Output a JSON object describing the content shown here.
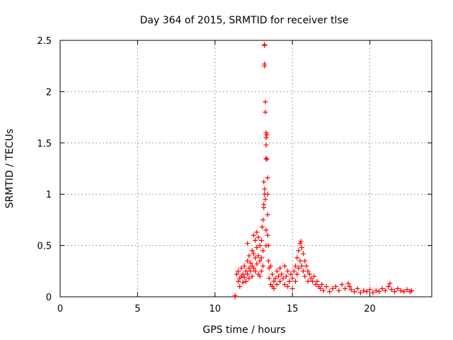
{
  "chart_data": {
    "type": "scatter",
    "title": "Day 364 of 2015, SRMTID for receiver tlse",
    "xlabel": "GPS time / hours",
    "ylabel": "SRMTID / TECUs",
    "xlim": [
      0,
      24
    ],
    "ylim": [
      0,
      2.5
    ],
    "xticks": [
      0,
      5,
      10,
      15,
      20
    ],
    "xtick_labels": [
      "0",
      "5",
      "10",
      "15",
      "20"
    ],
    "yticks": [
      0,
      0.5,
      1,
      1.5,
      2,
      2.5
    ],
    "ytick_labels": [
      "0",
      "0.5",
      "1",
      "1.5",
      "2",
      "2.5"
    ],
    "grid": true,
    "marker": "+",
    "series": [
      {
        "name": "SRMTID",
        "color": "#ff0000",
        "points": [
          [
            11.3,
            0.0
          ],
          [
            11.3,
            0.01
          ],
          [
            11.4,
            0.22
          ],
          [
            11.5,
            0.15
          ],
          [
            11.5,
            0.25
          ],
          [
            11.6,
            0.18
          ],
          [
            11.6,
            0.1
          ],
          [
            11.7,
            0.28
          ],
          [
            11.7,
            0.2
          ],
          [
            11.8,
            0.22
          ],
          [
            11.8,
            0.14
          ],
          [
            11.9,
            0.3
          ],
          [
            11.9,
            0.19
          ],
          [
            12.0,
            0.25
          ],
          [
            12.0,
            0.15
          ],
          [
            12.1,
            0.52
          ],
          [
            12.1,
            0.35
          ],
          [
            12.1,
            0.22
          ],
          [
            12.2,
            0.4
          ],
          [
            12.2,
            0.28
          ],
          [
            12.2,
            0.18
          ],
          [
            12.3,
            0.33
          ],
          [
            12.3,
            0.25
          ],
          [
            12.4,
            0.45
          ],
          [
            12.4,
            0.3
          ],
          [
            12.4,
            0.2
          ],
          [
            12.5,
            0.6
          ],
          [
            12.5,
            0.42
          ],
          [
            12.5,
            0.28
          ],
          [
            12.6,
            0.55
          ],
          [
            12.6,
            0.38
          ],
          [
            12.6,
            0.25
          ],
          [
            12.7,
            0.63
          ],
          [
            12.7,
            0.48
          ],
          [
            12.7,
            0.32
          ],
          [
            12.8,
            0.58
          ],
          [
            12.8,
            0.4
          ],
          [
            12.8,
            0.22
          ],
          [
            12.9,
            0.5
          ],
          [
            12.9,
            0.35
          ],
          [
            12.9,
            0.2
          ],
          [
            13.0,
            0.55
          ],
          [
            13.0,
            0.38
          ],
          [
            13.0,
            0.25
          ],
          [
            13.05,
            0.68
          ],
          [
            13.1,
            0.75
          ],
          [
            13.1,
            0.45
          ],
          [
            13.1,
            0.3
          ],
          [
            13.15,
            0.9
          ],
          [
            13.15,
            0.87
          ],
          [
            13.15,
            1.12
          ],
          [
            13.2,
            1.05
          ],
          [
            13.2,
            1.0
          ],
          [
            13.2,
            2.45
          ],
          [
            13.2,
            2.46
          ],
          [
            13.2,
            2.25
          ],
          [
            13.2,
            2.27
          ],
          [
            13.25,
            1.9
          ],
          [
            13.25,
            1.8
          ],
          [
            13.25,
            0.95
          ],
          [
            13.3,
            1.6
          ],
          [
            13.3,
            1.55
          ],
          [
            13.3,
            1.48
          ],
          [
            13.3,
            1.35
          ],
          [
            13.3,
            0.65
          ],
          [
            13.3,
            0.5
          ],
          [
            13.35,
            1.58
          ],
          [
            13.35,
            1.34
          ],
          [
            13.4,
            1.16
          ],
          [
            13.4,
            1.0
          ],
          [
            13.4,
            0.8
          ],
          [
            13.4,
            0.6
          ],
          [
            13.45,
            0.5
          ],
          [
            13.45,
            0.35
          ],
          [
            13.5,
            0.28
          ],
          [
            13.5,
            0.18
          ],
          [
            13.6,
            0.3
          ],
          [
            13.6,
            0.12
          ],
          [
            13.7,
            0.22
          ],
          [
            13.7,
            0.1
          ],
          [
            13.8,
            0.15
          ],
          [
            13.8,
            0.08
          ],
          [
            13.9,
            0.18
          ],
          [
            14.0,
            0.25
          ],
          [
            14.0,
            0.12
          ],
          [
            14.1,
            0.2
          ],
          [
            14.2,
            0.28
          ],
          [
            14.2,
            0.15
          ],
          [
            14.3,
            0.22
          ],
          [
            14.4,
            0.18
          ],
          [
            14.5,
            0.3
          ],
          [
            14.5,
            0.12
          ],
          [
            14.6,
            0.2
          ],
          [
            14.7,
            0.25
          ],
          [
            14.7,
            0.1
          ],
          [
            14.8,
            0.15
          ],
          [
            14.9,
            0.22
          ],
          [
            15.0,
            0.18
          ],
          [
            15.0,
            0.08
          ],
          [
            15.1,
            0.25
          ],
          [
            15.2,
            0.3
          ],
          [
            15.2,
            0.15
          ],
          [
            15.3,
            0.38
          ],
          [
            15.3,
            0.22
          ],
          [
            15.4,
            0.45
          ],
          [
            15.4,
            0.28
          ],
          [
            15.5,
            0.52
          ],
          [
            15.5,
            0.35
          ],
          [
            15.55,
            0.54
          ],
          [
            15.6,
            0.48
          ],
          [
            15.6,
            0.3
          ],
          [
            15.7,
            0.42
          ],
          [
            15.7,
            0.25
          ],
          [
            15.8,
            0.35
          ],
          [
            15.8,
            0.2
          ],
          [
            15.9,
            0.3
          ],
          [
            16.0,
            0.25
          ],
          [
            16.0,
            0.15
          ],
          [
            16.1,
            0.22
          ],
          [
            16.2,
            0.18
          ],
          [
            16.3,
            0.15
          ],
          [
            16.4,
            0.2
          ],
          [
            16.5,
            0.12
          ],
          [
            16.6,
            0.15
          ],
          [
            16.7,
            0.1
          ],
          [
            16.8,
            0.08
          ],
          [
            16.9,
            0.12
          ],
          [
            17.0,
            0.06
          ],
          [
            17.2,
            0.1
          ],
          [
            17.4,
            0.05
          ],
          [
            17.6,
            0.08
          ],
          [
            17.8,
            0.1
          ],
          [
            18.0,
            0.06
          ],
          [
            18.2,
            0.12
          ],
          [
            18.4,
            0.08
          ],
          [
            18.6,
            0.13
          ],
          [
            18.7,
            0.1
          ],
          [
            18.8,
            0.07
          ],
          [
            19.0,
            0.05
          ],
          [
            19.2,
            0.08
          ],
          [
            19.4,
            0.04
          ],
          [
            19.6,
            0.06
          ],
          [
            19.8,
            0.05
          ],
          [
            20.0,
            0.07
          ],
          [
            20.2,
            0.04
          ],
          [
            20.4,
            0.06
          ],
          [
            20.6,
            0.05
          ],
          [
            20.8,
            0.08
          ],
          [
            21.0,
            0.06
          ],
          [
            21.2,
            0.1
          ],
          [
            21.3,
            0.13
          ],
          [
            21.4,
            0.07
          ],
          [
            21.6,
            0.05
          ],
          [
            21.8,
            0.08
          ],
          [
            22.0,
            0.06
          ],
          [
            22.2,
            0.05
          ],
          [
            22.4,
            0.07
          ],
          [
            22.6,
            0.05
          ],
          [
            22.7,
            0.06
          ]
        ]
      }
    ]
  }
}
